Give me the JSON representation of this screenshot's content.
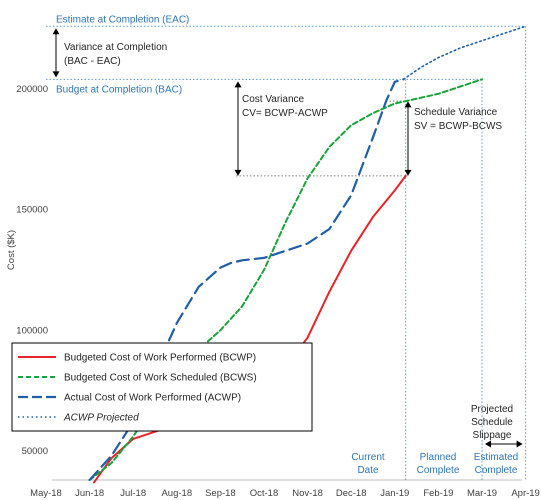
{
  "chart_data": {
    "type": "line",
    "ylabel": "Cost ($K)",
    "xlabel": "",
    "y_ticks": [
      50000,
      100000,
      150000,
      200000
    ],
    "y_tick_labels": [
      "50000",
      "100000",
      "150000",
      "200000"
    ],
    "ylim": [
      35000,
      230000
    ],
    "x_tick_labels": [
      "May-18",
      "Jun-18",
      "Jul-18",
      "Aug-18",
      "Sep-18",
      "Oct-18",
      "Nov-18",
      "Dec-18",
      "Jan-19",
      "Feb-19",
      "Mar-19",
      "Apr-19"
    ],
    "grid": false,
    "legend_position": "bottom-left",
    "series": [
      {
        "name": "Budgeted Cost of Work Performed (BCWP)",
        "color": "#e8232a",
        "style": "solid",
        "x": [
          1.1,
          1.5,
          2.0,
          2.5,
          3.0,
          3.5,
          4.0,
          4.5,
          5.0,
          5.5,
          6.0,
          6.5,
          7.0,
          7.5,
          8.0,
          8.25
        ],
        "y": [
          37000,
          47000,
          55000,
          58000,
          61000,
          66000,
          72000,
          77000,
          80000,
          85000,
          97000,
          116000,
          133000,
          147000,
          158000,
          164000
        ]
      },
      {
        "name": "Budgeted Cost of Work Scheduled (BCWS)",
        "color": "#19a33a",
        "style": "dashed",
        "x": [
          1.0,
          1.5,
          2.0,
          2.5,
          3.0,
          3.5,
          4.0,
          4.5,
          5.0,
          5.5,
          6.0,
          6.5,
          7.0,
          7.5,
          8.0,
          8.25,
          8.5,
          9.0,
          9.5,
          10.0
        ],
        "y": [
          38000,
          45000,
          56000,
          70000,
          84000,
          92000,
          100000,
          110000,
          125000,
          145000,
          163000,
          176000,
          185000,
          190000,
          194000,
          195000,
          196000,
          198000,
          201000,
          204000
        ]
      },
      {
        "name": "Actual Cost of Work Performed (ACWP)",
        "color": "#1f5fa8",
        "style": "long-dash",
        "x": [
          1.0,
          1.5,
          2.0,
          2.5,
          3.0,
          3.5,
          4.0,
          4.25,
          4.5,
          5.0,
          5.5,
          6.0,
          6.5,
          7.0,
          7.5,
          7.8,
          8.0,
          8.2
        ],
        "y": [
          38000,
          48000,
          62000,
          83000,
          103000,
          118000,
          126000,
          128000,
          129000,
          130000,
          133000,
          136000,
          142000,
          156000,
          180000,
          195000,
          203000,
          204000
        ]
      },
      {
        "name": "ACWP Projected",
        "color": "#1f5fa8",
        "style": "dotted",
        "x": [
          8.2,
          8.6,
          9.0,
          9.5,
          10.0,
          10.5,
          11.0
        ],
        "y": [
          204000,
          209000,
          213000,
          217000,
          220000,
          223000,
          226000
        ]
      }
    ],
    "annotations": {
      "eac": "Estimate at Completion (EAC)",
      "bac": "Budget at Completion (BAC)",
      "vac_line1": "Variance at Completion",
      "vac_line2": "(BAC - EAC)",
      "cv_line1": "Cost Variance",
      "cv_line2": "CV= BCWP-ACWP",
      "sv_line1": "Schedule Variance",
      "sv_line2": "SV = BCWP-BCWS",
      "current_date_line1": "Current",
      "current_date_line2": "Date",
      "planned_complete_line1": "Planned",
      "planned_complete_line2": "Complete",
      "estimated_complete_line1": "Estimated",
      "estimated_complete_line2": "Complete",
      "slippage_line1": "Projected",
      "slippage_line2": "Schedule",
      "slippage_line3": "Slippage"
    },
    "reference_values": {
      "eac": 226000,
      "bac": 204000,
      "bcwp_current": 164000,
      "acwp_current": 204000,
      "bcws_current": 195000,
      "current_date_x": 8.25,
      "planned_complete_x": 10.0,
      "estimated_complete_x": 11.0
    }
  }
}
